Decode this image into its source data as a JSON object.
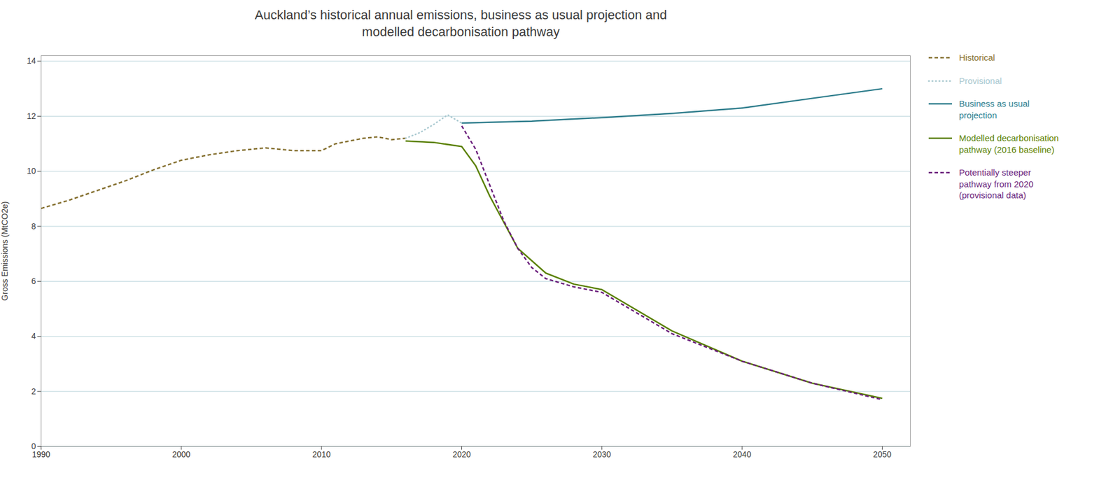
{
  "chart_data": {
    "type": "line",
    "title": "Auckland’s historical annual emissions, business as usual projection and\nmodelled decarbonisation pathway",
    "y_label": "Gross Emissions (MtCO2e)",
    "xlim": [
      1990,
      2052
    ],
    "xticks": [
      1990,
      2000,
      2010,
      2020,
      2030,
      2040,
      2050
    ],
    "ylim": [
      0,
      14.2
    ],
    "yticks": [
      0,
      2,
      4,
      6,
      8,
      10,
      12,
      14
    ],
    "grid": "y",
    "legend": "right",
    "series": [
      {
        "name": "Historical",
        "color": "#857030",
        "line_style": "dashed",
        "x": [
          1990,
          1992,
          1994,
          1996,
          1998,
          2000,
          2002,
          2004,
          2006,
          2008,
          2010,
          2011,
          2012,
          2013,
          2014,
          2015,
          2016
        ],
        "values": [
          8.65,
          8.95,
          9.3,
          9.65,
          10.05,
          10.4,
          10.6,
          10.75,
          10.85,
          10.75,
          10.75,
          11.0,
          11.1,
          11.2,
          11.25,
          11.15,
          11.2
        ]
      },
      {
        "name": "Provisional",
        "color": "#a8c8d0",
        "line_style": "dotted",
        "x": [
          2016,
          2017,
          2018,
          2019,
          2020
        ],
        "values": [
          11.2,
          11.4,
          11.7,
          12.05,
          11.75
        ]
      },
      {
        "name": "Business as usual\nprojection",
        "color": "#2e7d8c",
        "line_style": "solid",
        "x": [
          2020,
          2025,
          2030,
          2035,
          2040,
          2045,
          2050
        ],
        "values": [
          11.75,
          11.82,
          11.95,
          12.1,
          12.3,
          12.65,
          13.0
        ]
      },
      {
        "name": "Modelled decarbonisation\npathway (2016 baseline)",
        "color": "#5a8000",
        "line_style": "solid",
        "x": [
          2016,
          2018,
          2020,
          2021,
          2022,
          2024,
          2026,
          2028,
          2030,
          2035,
          2040,
          2045,
          2050
        ],
        "values": [
          11.1,
          11.05,
          10.9,
          10.2,
          9.1,
          7.2,
          6.3,
          5.9,
          5.7,
          4.2,
          3.1,
          2.3,
          1.75
        ]
      },
      {
        "name": "Potentially steeper\npathway from 2020\n(provisional data)",
        "color": "#6b1f7c",
        "line_style": "dashed",
        "x": [
          2020,
          2021,
          2022,
          2023,
          2024,
          2025,
          2026,
          2028,
          2030,
          2035,
          2040,
          2045,
          2050
        ],
        "values": [
          11.65,
          10.8,
          9.5,
          8.2,
          7.2,
          6.5,
          6.1,
          5.8,
          5.6,
          4.1,
          3.1,
          2.3,
          1.7
        ]
      }
    ]
  }
}
